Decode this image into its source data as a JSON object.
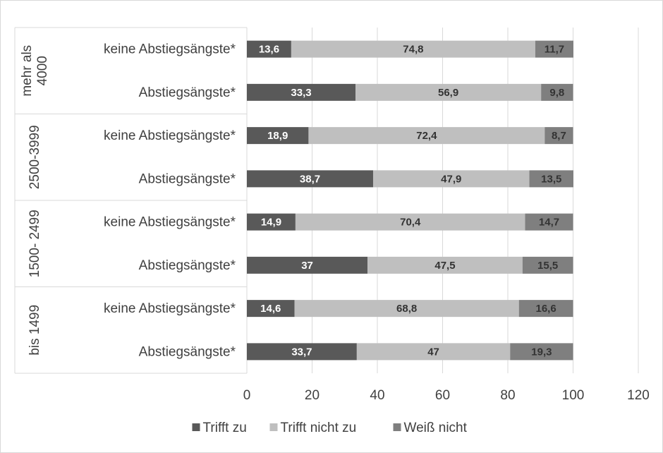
{
  "chart_data": {
    "type": "bar",
    "orientation": "horizontal",
    "stacked": true,
    "title": "",
    "xlabel": "",
    "ylabel": "",
    "xlim": [
      0,
      120
    ],
    "xticks": [
      0,
      20,
      40,
      60,
      80,
      100,
      120
    ],
    "grid": true,
    "legend_position": "bottom",
    "groups": [
      {
        "label": "mehr als 4000",
        "label_lines": [
          "mehr als",
          "4000"
        ],
        "categories": [
          "keine Abstiegsängste*",
          "Abstiegsängste*"
        ]
      },
      {
        "label": "2500-3999",
        "label_lines": [
          "2500-3999"
        ],
        "categories": [
          "keine Abstiegsängste*",
          "Abstiegsängste*"
        ]
      },
      {
        "label": "1500- 2499",
        "label_lines": [
          "1500- 2499"
        ],
        "categories": [
          "keine Abstiegsängste*",
          "Abstiegsängste*"
        ]
      },
      {
        "label": "bis 1499",
        "label_lines": [
          "bis 1499"
        ],
        "categories": [
          "keine Abstiegsängste*",
          "Abstiegsängste*"
        ]
      }
    ],
    "series": [
      {
        "name": "Trifft zu",
        "color": "#595959",
        "values": [
          13.6,
          33.3,
          18.9,
          38.7,
          14.9,
          37,
          14.6,
          33.7
        ],
        "labels": [
          "13,6",
          "33,3",
          "18,9",
          "38,7",
          "14,9",
          "37",
          "14,6",
          "33,7"
        ]
      },
      {
        "name": "Trifft nicht zu",
        "color": "#bfbfbf",
        "values": [
          74.8,
          56.9,
          72.4,
          47.9,
          70.4,
          47.5,
          68.8,
          47
        ],
        "labels": [
          "74,8",
          "56,9",
          "72,4",
          "47,9",
          "70,4",
          "47,5",
          "68,8",
          "47"
        ]
      },
      {
        "name": "Weiß nicht",
        "color": "#7f7f7f",
        "values": [
          11.7,
          9.8,
          8.7,
          13.5,
          14.7,
          15.5,
          16.6,
          19.3
        ],
        "labels": [
          "11,7",
          "9,8",
          "8,7",
          "13,5",
          "14,7",
          "15,5",
          "16,6",
          "19,3"
        ]
      }
    ]
  }
}
